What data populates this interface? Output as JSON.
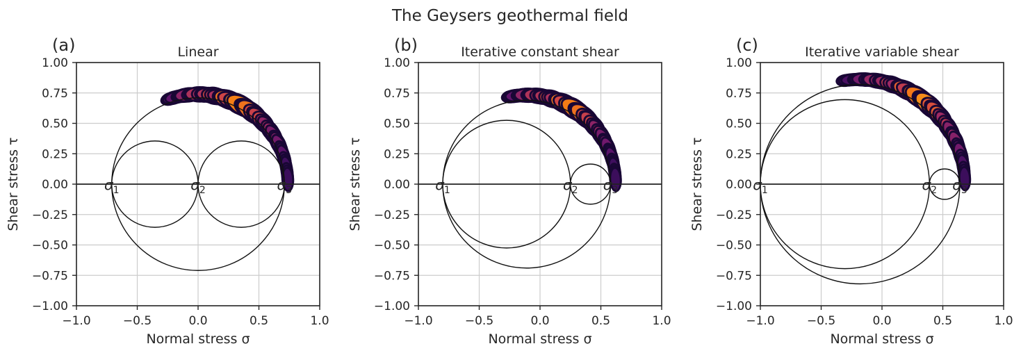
{
  "figure": {
    "suptitle": "The Geysers geothermal field"
  },
  "chart_data": [
    {
      "type": "scatter",
      "panel_label": "(a)",
      "title": "Linear",
      "xlabel": "Normal stress σ",
      "ylabel": "Shear stress τ",
      "xlim": [
        -1.0,
        1.0
      ],
      "ylim": [
        -1.0,
        1.0
      ],
      "xticks": [
        "−1.0",
        "−0.5",
        "0.0",
        "0.5",
        "1.0"
      ],
      "yticks": [
        "1.00",
        "0.75",
        "0.50",
        "0.25",
        "0.00",
        "−0.25",
        "−0.50",
        "−0.75",
        "−1.00"
      ],
      "grid": true,
      "principal_stresses": [
        {
          "label": "σ",
          "sub": "1",
          "value": -0.71
        },
        {
          "label": "σ",
          "sub": "2",
          "value": 0.0
        },
        {
          "label": "σ",
          "sub": "3",
          "value": 0.71
        }
      ],
      "mohr_circles": [
        {
          "center": 0.0,
          "radius": 0.71
        },
        {
          "center": -0.355,
          "radius": 0.355
        },
        {
          "center": 0.355,
          "radius": 0.355
        }
      ],
      "density_band": {
        "start_deg": 108,
        "end_deg": 3,
        "peak_deg": 62,
        "scale": 1.04
      }
    },
    {
      "type": "scatter",
      "panel_label": "(b)",
      "title": "Iterative constant shear",
      "xlabel": "Normal stress σ",
      "ylabel": "Shear stress τ",
      "xlim": [
        -1.0,
        1.0
      ],
      "ylim": [
        -1.0,
        1.0
      ],
      "xticks": [
        "−1.0",
        "−0.5",
        "0.0",
        "0.5",
        "1.0"
      ],
      "yticks": [
        "1.00",
        "0.75",
        "0.50",
        "0.25",
        "0.00",
        "−0.25",
        "−0.50",
        "−0.75",
        "−1.00"
      ],
      "grid": true,
      "principal_stresses": [
        {
          "label": "σ",
          "sub": "1",
          "value": -0.8
        },
        {
          "label": "σ",
          "sub": "2",
          "value": 0.25
        },
        {
          "label": "σ",
          "sub": "3",
          "value": 0.58
        }
      ],
      "mohr_circles": [
        {
          "center": -0.11,
          "radius": 0.69
        },
        {
          "center": -0.275,
          "radius": 0.525
        },
        {
          "center": 0.415,
          "radius": 0.165
        }
      ],
      "density_band": {
        "start_deg": 100,
        "end_deg": 3,
        "peak_deg": 58,
        "scale": 1.06
      }
    },
    {
      "type": "scatter",
      "panel_label": "(c)",
      "title": "Iterative variable shear",
      "xlabel": "Normal stress σ",
      "ylabel": "Shear stress τ",
      "xlim": [
        -1.0,
        1.0
      ],
      "ylim": [
        -1.0,
        1.0
      ],
      "xticks": [
        "−1.0",
        "−0.5",
        "0.0",
        "0.5",
        "1.0"
      ],
      "yticks": [
        "1.00",
        "0.75",
        "0.50",
        "0.25",
        "0.00",
        "−0.25",
        "−0.50",
        "−0.75",
        "−1.00"
      ],
      "grid": true,
      "principal_stresses": [
        {
          "label": "σ",
          "sub": "1",
          "value": -1.0
        },
        {
          "label": "σ",
          "sub": "2",
          "value": 0.39
        },
        {
          "label": "σ",
          "sub": "3",
          "value": 0.64
        }
      ],
      "mohr_circles": [
        {
          "center": -0.18,
          "radius": 0.82
        },
        {
          "center": -0.305,
          "radius": 0.695
        },
        {
          "center": 0.515,
          "radius": 0.125
        }
      ],
      "density_band": {
        "start_deg": 98,
        "end_deg": 3,
        "peak_deg": 52,
        "scale": 1.05
      }
    }
  ]
}
